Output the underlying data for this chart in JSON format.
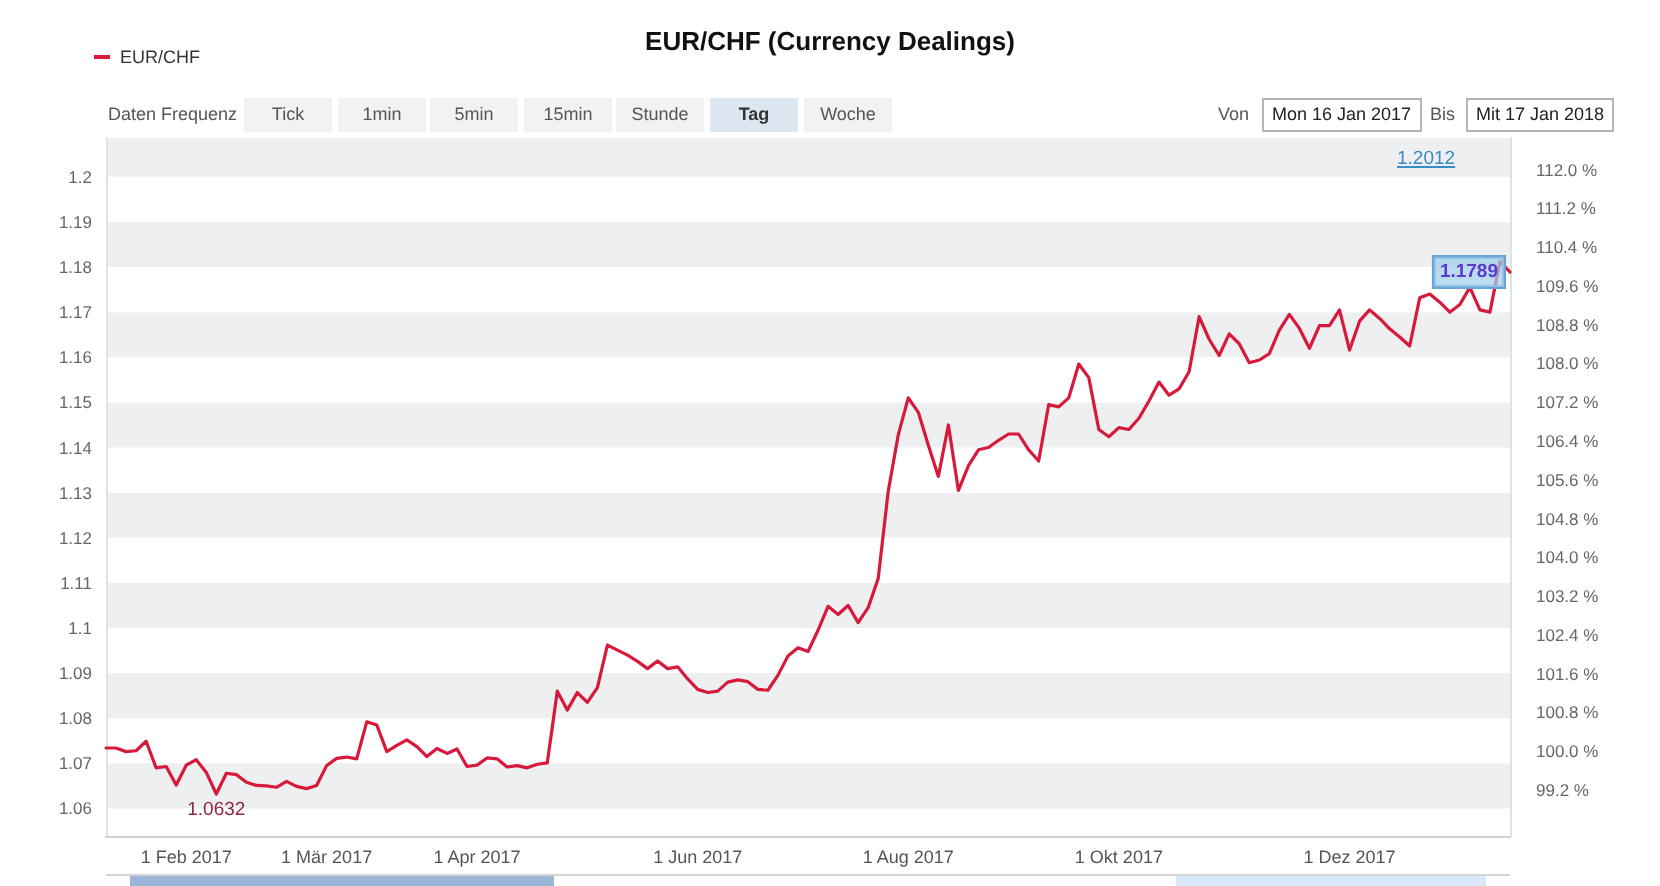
{
  "chart_data": {
    "type": "line",
    "title": "EUR/CHF (Currency Dealings)",
    "categories": [
      null,
      null,
      null,
      null,
      null,
      null,
      null,
      null,
      "1 Feb 2017",
      null,
      null,
      null,
      null,
      null,
      null,
      null,
      null,
      null,
      null,
      null,
      null,
      null,
      "1 Mär 2017",
      null,
      null,
      null,
      null,
      null,
      null,
      null,
      null,
      null,
      null,
      null,
      null,
      null,
      null,
      "1 Apr 2017",
      null,
      null,
      null,
      null,
      null,
      null,
      null,
      null,
      null,
      null,
      null,
      null,
      null,
      null,
      null,
      null,
      null,
      null,
      null,
      null,
      null,
      "1 Jun 2017",
      null,
      null,
      null,
      null,
      null,
      null,
      null,
      null,
      null,
      null,
      null,
      null,
      null,
      null,
      null,
      null,
      null,
      null,
      null,
      null,
      "1 Aug 2017",
      null,
      null,
      null,
      null,
      null,
      null,
      null,
      null,
      null,
      null,
      null,
      null,
      null,
      null,
      null,
      null,
      null,
      null,
      null,
      null,
      "1 Okt 2017",
      null,
      null,
      null,
      null,
      null,
      null,
      null,
      null,
      null,
      null,
      null,
      null,
      null,
      null,
      null,
      null,
      null,
      null,
      null,
      null,
      null,
      null,
      "1 Dez 2017",
      null,
      null,
      null,
      null,
      null,
      null,
      null,
      null,
      null,
      null,
      null,
      null,
      null,
      null,
      null,
      null
    ],
    "series": [
      {
        "name": "EUR/CHF",
        "color": "#d7193c",
        "values": [
          1.0734,
          1.0734,
          1.0726,
          1.0728,
          1.0749,
          1.069,
          1.0693,
          1.0652,
          1.0696,
          1.0708,
          1.068,
          1.0632,
          1.0678,
          1.0675,
          1.0658,
          1.0651,
          1.065,
          1.0647,
          1.066,
          1.0649,
          1.0644,
          1.0651,
          1.0695,
          1.0711,
          1.0714,
          1.071,
          1.0792,
          1.0785,
          1.0726,
          1.074,
          1.0752,
          1.0737,
          1.0715,
          1.0733,
          1.0722,
          1.0732,
          1.0693,
          1.0696,
          1.0712,
          1.071,
          1.0692,
          1.0695,
          1.069,
          1.0698,
          1.0701,
          1.086,
          1.0818,
          1.0857,
          1.0835,
          1.0868,
          1.0962,
          1.0951,
          1.094,
          1.0926,
          1.091,
          1.0927,
          1.091,
          1.0914,
          1.0887,
          1.0864,
          1.0857,
          1.086,
          1.088,
          1.0885,
          1.0881,
          1.0864,
          1.0862,
          1.0895,
          1.0938,
          1.0956,
          1.0948,
          1.0995,
          1.1048,
          1.103,
          1.105,
          1.1012,
          1.1045,
          1.111,
          1.1303,
          1.1428,
          1.151,
          1.1478,
          1.1405,
          1.1336,
          1.145,
          1.1305,
          1.136,
          1.1395,
          1.14,
          1.1416,
          1.143,
          1.143,
          1.1395,
          1.137,
          1.1495,
          1.149,
          1.151,
          1.1585,
          1.1555,
          1.144,
          1.1424,
          1.1444,
          1.144,
          1.1465,
          1.1503,
          1.1545,
          1.1516,
          1.153,
          1.1568,
          1.169,
          1.164,
          1.1604,
          1.1652,
          1.163,
          1.1588,
          1.1594,
          1.1608,
          1.166,
          1.1695,
          1.1664,
          1.162,
          1.167,
          1.167,
          1.1705,
          1.1616,
          1.168,
          1.1705,
          1.1686,
          1.1663,
          1.1645,
          1.1625,
          1.1732,
          1.174,
          1.1722,
          1.17,
          1.1717,
          1.1755,
          1.1705,
          1.17,
          1.1812,
          1.1789
        ],
        "value_labels": [
          null,
          null,
          null,
          null,
          null,
          null,
          null,
          null,
          null,
          null,
          null,
          "1.0632",
          null,
          null,
          null,
          null,
          null,
          null,
          null,
          null,
          null,
          null,
          null,
          null,
          null,
          null,
          null,
          null,
          null,
          null,
          null,
          null,
          null,
          null,
          null,
          null,
          null,
          null,
          null,
          null,
          null,
          null,
          null,
          null,
          null,
          null,
          null,
          null,
          null,
          null,
          null,
          null,
          null,
          null,
          null,
          null,
          null,
          null,
          null,
          null,
          null,
          null,
          null,
          null,
          null,
          null,
          null,
          null,
          null,
          null,
          null,
          null,
          null,
          null,
          null,
          null,
          null,
          null,
          null,
          null,
          null,
          null,
          null,
          null,
          null,
          null,
          null,
          null,
          null,
          null,
          null,
          null,
          null,
          null,
          null,
          null,
          null,
          null,
          null,
          null,
          null,
          null,
          null,
          null,
          null,
          null,
          null,
          null,
          null,
          null,
          null,
          null,
          null,
          null,
          null,
          null,
          null,
          null,
          null,
          null,
          null,
          null,
          null,
          null,
          null,
          null,
          null,
          null,
          null,
          null,
          null,
          null,
          null,
          null,
          null,
          null,
          null,
          null,
          null,
          null,
          "1.1789"
        ]
      }
    ],
    "ylim": [
      1.0539,
      1.2086
    ],
    "yticks": [
      1.06,
      1.07,
      1.08,
      1.09,
      1.1,
      1.11,
      1.12,
      1.13,
      1.14,
      1.15,
      1.16,
      1.17,
      1.18,
      1.19,
      1.2
    ],
    "y2lim": [
      98.25,
      112.65
    ],
    "y2ticks": [
      {
        "value": 99.2,
        "label": "99.2 %"
      },
      {
        "value": 100,
        "label": "100.0 %"
      },
      {
        "value": 100.8,
        "label": "100.8 %"
      },
      {
        "value": 101.6,
        "label": "101.6 %"
      },
      {
        "value": 102.4,
        "label": "102.4 %"
      },
      {
        "value": 103.2,
        "label": "103.2 %"
      },
      {
        "value": 104,
        "label": "104.0 %"
      },
      {
        "value": 104.8,
        "label": "104.8 %"
      },
      {
        "value": 105.6,
        "label": "105.6 %"
      },
      {
        "value": 106.4,
        "label": "106.4 %"
      },
      {
        "value": 107.2,
        "label": "107.2 %"
      },
      {
        "value": 108,
        "label": "108.0 %"
      },
      {
        "value": 108.8,
        "label": "108.8 %"
      },
      {
        "value": 109.6,
        "label": "109.6 %"
      },
      {
        "value": 110.4,
        "label": "110.4 %"
      },
      {
        "value": 111.2,
        "label": "111.2 %"
      },
      {
        "value": 112,
        "label": "112.0 %"
      }
    ],
    "legend": "top left",
    "marker": "none",
    "line_style": "solid",
    "annotations": [
      "Daten Frequenz",
      "Tick",
      "1min",
      "5min",
      "15min",
      "Stunde",
      "Tag",
      "Woche",
      "Von",
      "Mon 16 Jan 2017",
      "Bis",
      "Mit 17 Jan 2018",
      "1.2012"
    ]
  }
}
